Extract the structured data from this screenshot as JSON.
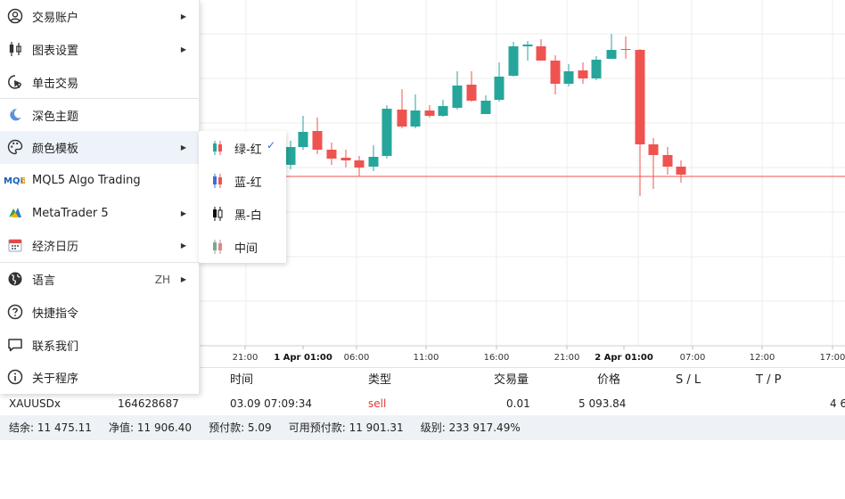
{
  "chart": {
    "time_labels": [
      "21:00",
      "1 Apr 01:00",
      "06:00",
      "11:00",
      "16:00",
      "21:00",
      "2 Apr 01:00",
      "07:00",
      "12:00",
      "17:00"
    ],
    "colors": {
      "up": "#26a69a",
      "down": "#ef5350",
      "grid": "#eeeeee",
      "price_line": "#ef5350"
    }
  },
  "menu": {
    "items": [
      {
        "label": "交易账户",
        "icon": "user-circle-icon",
        "has_submenu": true
      },
      {
        "label": "图表设置",
        "icon": "candles-icon",
        "has_submenu": true
      },
      {
        "label": "单击交易",
        "icon": "pointer-click-icon",
        "has_submenu": false
      },
      {
        "label": "深色主题",
        "icon": "moon-icon",
        "has_submenu": false
      },
      {
        "label": "颜色模板",
        "icon": "palette-icon",
        "has_submenu": true
      },
      {
        "label": "MQL5 Algo Trading",
        "icon": "mql5-logo-icon",
        "has_submenu": false
      },
      {
        "label": "MetaTrader 5",
        "icon": "metatrader5-logo-icon",
        "has_submenu": true
      },
      {
        "label": "经济日历",
        "icon": "calendar-icon",
        "has_submenu": true
      },
      {
        "label": "语言",
        "icon": "globe-icon",
        "has_submenu": true,
        "extra": "ZH"
      },
      {
        "label": "快捷指令",
        "icon": "question-circle-icon",
        "has_submenu": false
      },
      {
        "label": "联系我们",
        "icon": "chat-icon",
        "has_submenu": false
      },
      {
        "label": "关于程序",
        "icon": "info-circle-icon",
        "has_submenu": false
      }
    ]
  },
  "submenu": {
    "items": [
      {
        "label": "绿-红",
        "checked": true,
        "up_color": "#26a69a",
        "down_color": "#ef5350"
      },
      {
        "label": "蓝-红",
        "checked": false,
        "up_color": "#3b6fd6",
        "down_color": "#ef5350"
      },
      {
        "label": "黑-白",
        "checked": false,
        "up_color": "#111111",
        "down_color": "#111111"
      },
      {
        "label": "中间",
        "checked": false,
        "up_color": "#7aa88f",
        "down_color": "#d98a8a"
      }
    ],
    "check_mark": "✓"
  },
  "positions": {
    "headers": {
      "time": "时间",
      "type": "类型",
      "volume": "交易量",
      "price": "价格",
      "sl": "S / L",
      "tp": "T / P"
    },
    "row": {
      "symbol": "XAUUSDx",
      "ticket": "164628687",
      "time": "03.09 07:09:34",
      "type": "sell",
      "volume": "0.01",
      "price": "5 093.84",
      "tp_partial": "4 6"
    }
  },
  "summary": {
    "balance": "结余: 11 475.11",
    "equity": "净值: 11 906.40",
    "margin": "预付款: 5.09",
    "free_margin": "可用预付款: 11 901.31",
    "level": "级别: 233 917.49%"
  }
}
